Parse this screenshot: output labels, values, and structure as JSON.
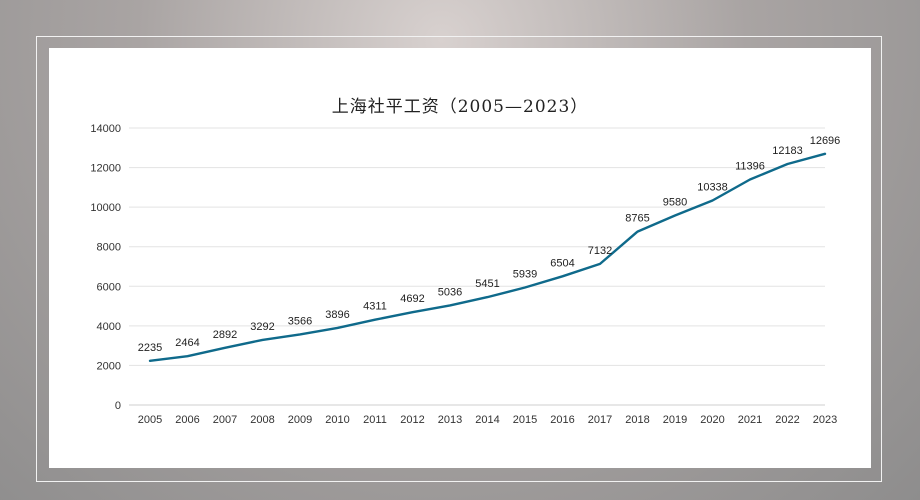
{
  "colors": {
    "line": "#0f6a8b",
    "grid": "#e3e3e3",
    "axis": "#cfcfcf"
  },
  "chart_data": {
    "type": "line",
    "title": "上海社平工资（2005—2023）",
    "xlabel": "",
    "ylabel": "",
    "x": [
      "2005",
      "2006",
      "2007",
      "2008",
      "2009",
      "2010",
      "2011",
      "2012",
      "2013",
      "2014",
      "2015",
      "2016",
      "2017",
      "2018",
      "2019",
      "2020",
      "2021",
      "2022",
      "2023"
    ],
    "series": [
      {
        "values": [
          2235,
          2464,
          2892,
          3292,
          3566,
          3896,
          4311,
          4692,
          5036,
          5451,
          5939,
          6504,
          7132,
          8765,
          9580,
          10338,
          11396,
          12183,
          12696
        ]
      }
    ],
    "ylim": [
      0,
      14000
    ],
    "yticks": [
      "0",
      "2000",
      "4000",
      "6000",
      "8000",
      "10000",
      "12000",
      "14000"
    ],
    "grid": true,
    "legend": "none",
    "data_labels": true
  }
}
